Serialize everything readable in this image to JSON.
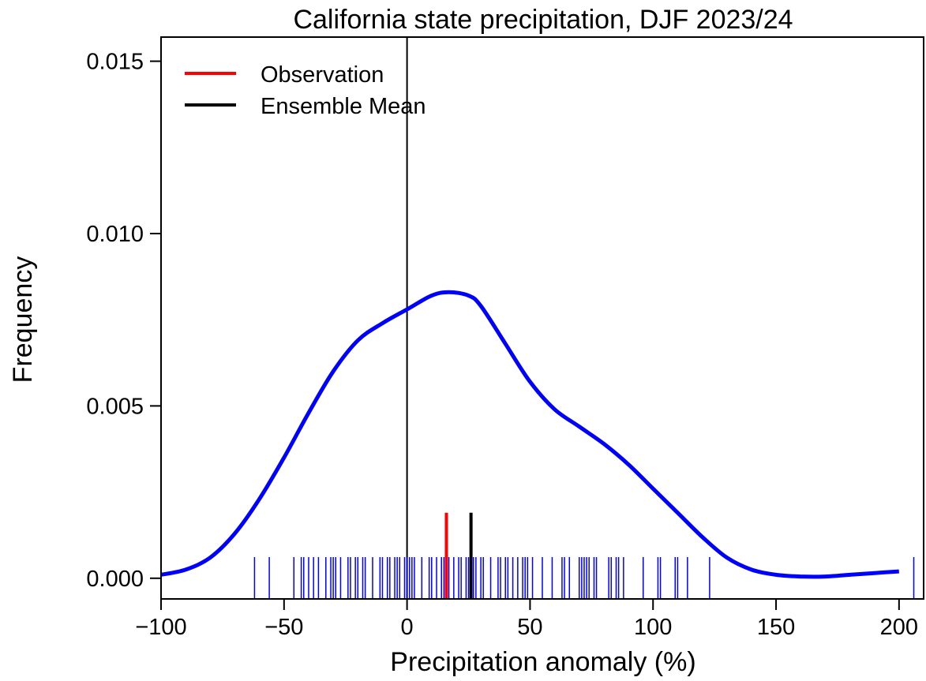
{
  "chart_data": {
    "type": "line",
    "title": "California state precipitation, DJF 2023/24",
    "xlabel": "Precipitation anomaly (%)",
    "ylabel": "Frequency",
    "xlim": [
      -100,
      210
    ],
    "ylim": [
      -0.0006,
      0.0157
    ],
    "xticks": [
      -100,
      -50,
      0,
      50,
      100,
      150,
      200
    ],
    "xtick_labels": [
      "−100",
      "−50",
      "0",
      "50",
      "100",
      "150",
      "200"
    ],
    "yticks": [
      0.0,
      0.005,
      0.01,
      0.015
    ],
    "ytick_labels": [
      "0.000",
      "0.005",
      "0.010",
      "0.015"
    ],
    "grid": false,
    "legend_position": "top-left",
    "colors": {
      "density": "#0000ff",
      "observation": "#ff0000",
      "ensemble_mean": "#000000",
      "zero_line": "#000000"
    },
    "legend": [
      {
        "label": "Observation",
        "color": "#ff0000"
      },
      {
        "label": "Ensemble Mean",
        "color": "#000000"
      }
    ],
    "density_curve": {
      "x": [
        -100,
        -90,
        -80,
        -70,
        -60,
        -50,
        -40,
        -30,
        -20,
        -10,
        0,
        10,
        17,
        25,
        30,
        40,
        50,
        60,
        70,
        80,
        90,
        100,
        110,
        120,
        130,
        140,
        150,
        160,
        170,
        180,
        190,
        200
      ],
      "y": [
        0.0001,
        0.00025,
        0.0006,
        0.0013,
        0.0023,
        0.0035,
        0.0048,
        0.006,
        0.0069,
        0.0074,
        0.0078,
        0.0082,
        0.0083,
        0.0082,
        0.0079,
        0.0068,
        0.0057,
        0.0049,
        0.0044,
        0.0039,
        0.0033,
        0.0026,
        0.0019,
        0.0012,
        0.0006,
        0.00025,
        0.0001,
        5e-05,
        5e-05,
        0.0001,
        0.00015,
        0.0002
      ]
    },
    "ensemble_rug": [
      -62,
      -56,
      -46,
      -43,
      -42,
      -40,
      -38,
      -36,
      -33,
      -31,
      -30,
      -29,
      -27,
      -24,
      -23,
      -21,
      -20,
      -18,
      -17,
      -14,
      -11,
      -10,
      -8,
      -7,
      -5,
      -4,
      -3,
      -1,
      0,
      1,
      2,
      3,
      6,
      9,
      10,
      12,
      14,
      15,
      16,
      17,
      19,
      21,
      22,
      24,
      25,
      26,
      27,
      28,
      30,
      31,
      34,
      37,
      38,
      40,
      41,
      43,
      45,
      47,
      48,
      49,
      51,
      55,
      59,
      63,
      64,
      66,
      70,
      71,
      72,
      73,
      74,
      76,
      77,
      82,
      83,
      85,
      86,
      88,
      96,
      102,
      103,
      109,
      110,
      114,
      123,
      206
    ],
    "observation": 16,
    "ensemble_mean": 26,
    "marker_height": 0.0019,
    "zero_line_x": 0
  }
}
